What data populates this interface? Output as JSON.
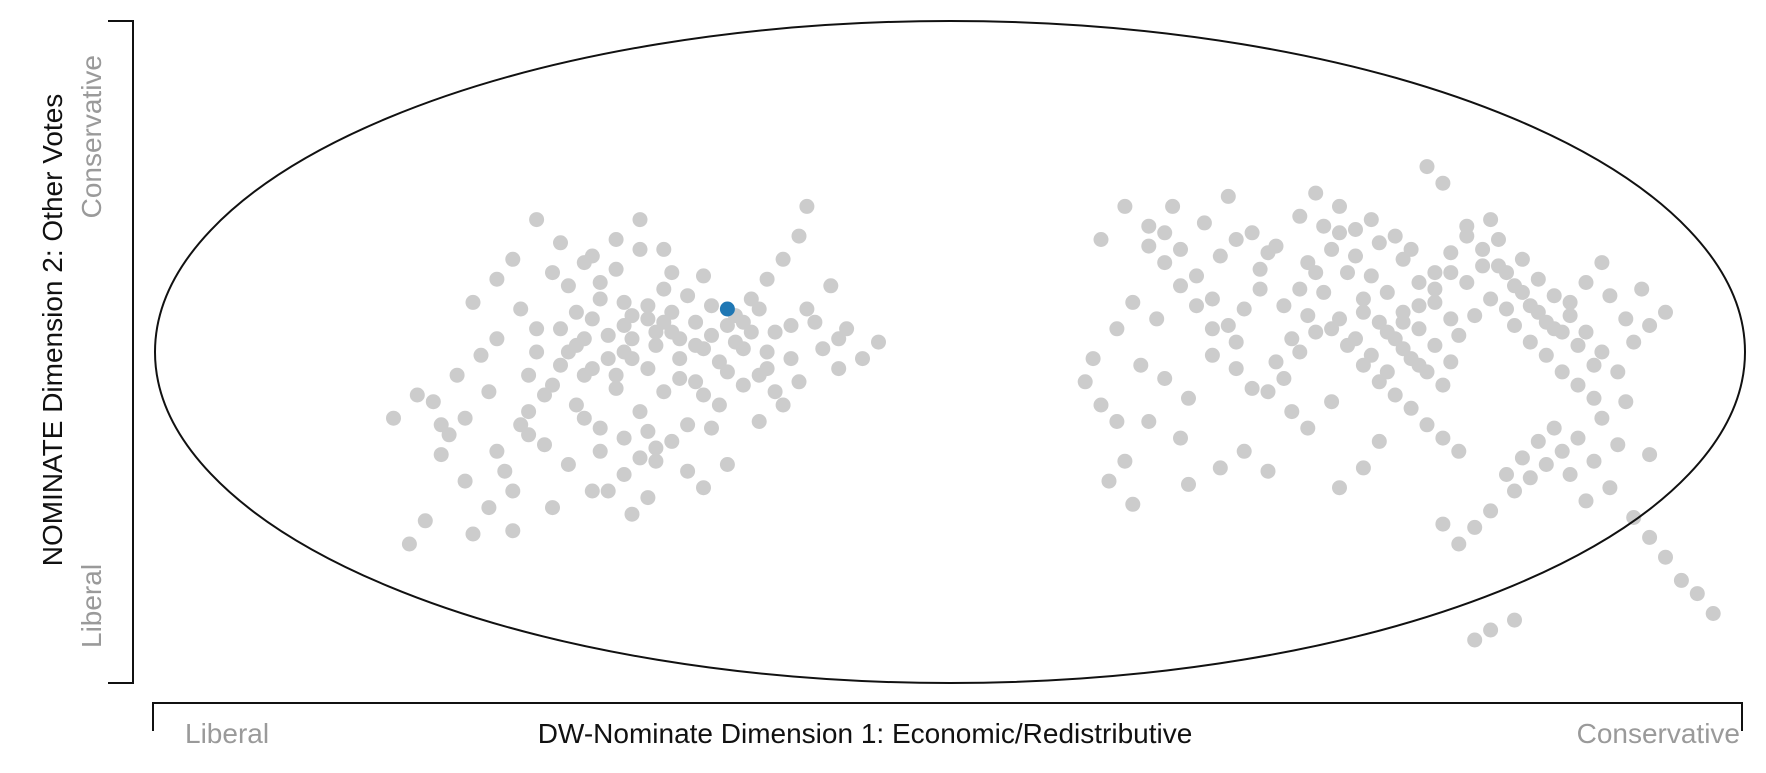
{
  "chart_data": {
    "type": "scatter",
    "title": "",
    "xlabel": "DW-Nominate Dimension 1: Economic/Redistributive",
    "ylabel": "NOMINATE Dimension 2: Other Votes",
    "x_end_labels": {
      "low": "Liberal",
      "high": "Conservative"
    },
    "y_end_labels": {
      "low": "Liberal",
      "high": "Conservative"
    },
    "xlim": [
      -1,
      1
    ],
    "ylim": [
      -1,
      1
    ],
    "grid": false,
    "legend": "none",
    "colors": {
      "point": "#cccccc",
      "highlight": "#1f77b4",
      "boundary": "#111111",
      "axis": "#111111",
      "end_label": "#9a9a9a"
    },
    "highlight": {
      "x": -0.28,
      "y": 0.13
    },
    "points": [
      [
        -0.52,
        0.4
      ],
      [
        -0.49,
        0.33
      ],
      [
        -0.46,
        0.27
      ],
      [
        -0.44,
        0.21
      ],
      [
        -0.41,
        0.15
      ],
      [
        -0.38,
        0.1
      ],
      [
        -0.35,
        0.06
      ],
      [
        -0.32,
        0.02
      ],
      [
        -0.3,
        0.05
      ],
      [
        -0.27,
        0.11
      ],
      [
        -0.25,
        0.16
      ],
      [
        -0.23,
        0.22
      ],
      [
        -0.21,
        0.28
      ],
      [
        -0.19,
        0.35
      ],
      [
        -0.18,
        0.44
      ],
      [
        -0.13,
        0.07
      ],
      [
        -0.11,
        -0.02
      ],
      [
        -0.09,
        0.03
      ],
      [
        -0.14,
        -0.05
      ],
      [
        -0.26,
        -0.1
      ],
      [
        -0.29,
        -0.16
      ],
      [
        -0.33,
        -0.22
      ],
      [
        -0.37,
        -0.29
      ],
      [
        -0.41,
        -0.37
      ],
      [
        -0.45,
        -0.42
      ],
      [
        -0.5,
        -0.47
      ],
      [
        -0.55,
        -0.54
      ],
      [
        -0.6,
        -0.55
      ],
      [
        -0.68,
        -0.58
      ],
      [
        -0.66,
        -0.51
      ],
      [
        -0.61,
        -0.39
      ],
      [
        -0.57,
        -0.3
      ],
      [
        -0.54,
        -0.22
      ],
      [
        -0.58,
        -0.12
      ],
      [
        -0.62,
        -0.07
      ],
      [
        -0.65,
        -0.15
      ],
      [
        -0.6,
        0.15
      ],
      [
        -0.55,
        0.28
      ],
      [
        -0.52,
        0.07
      ],
      [
        -0.48,
        0.0
      ],
      [
        -0.45,
        -0.05
      ],
      [
        -0.42,
        -0.11
      ],
      [
        -0.39,
        -0.18
      ],
      [
        -0.36,
        0.31
      ],
      [
        -0.33,
        0.17
      ],
      [
        -0.31,
        0.23
      ],
      [
        -0.29,
        -0.03
      ],
      [
        -0.24,
        -0.07
      ],
      [
        -0.22,
        -0.12
      ],
      [
        -0.2,
        -0.02
      ],
      [
        -0.17,
        0.09
      ],
      [
        -0.15,
        0.2
      ],
      [
        -0.47,
        0.12
      ],
      [
        -0.43,
        0.05
      ],
      [
        -0.4,
        -0.02
      ],
      [
        -0.37,
        0.02
      ],
      [
        -0.34,
        -0.08
      ],
      [
        -0.31,
        -0.13
      ],
      [
        -0.28,
        0.08
      ],
      [
        -0.26,
        0.01
      ],
      [
        -0.5,
        -0.1
      ],
      [
        -0.47,
        -0.16
      ],
      [
        -0.44,
        -0.23
      ],
      [
        -0.42,
        0.25
      ],
      [
        -0.39,
        0.31
      ],
      [
        -0.36,
        0.19
      ],
      [
        -0.54,
        0.13
      ],
      [
        -0.57,
        0.04
      ],
      [
        -0.59,
        -0.01
      ],
      [
        -0.51,
        -0.28
      ],
      [
        -0.48,
        -0.34
      ],
      [
        -0.43,
        -0.42
      ],
      [
        -0.4,
        -0.49
      ],
      [
        -0.38,
        -0.44
      ],
      [
        -0.35,
        -0.27
      ],
      [
        -0.33,
        -0.36
      ],
      [
        -0.3,
        -0.23
      ],
      [
        -0.56,
        -0.36
      ],
      [
        -0.63,
        -0.25
      ],
      [
        -0.64,
        -0.31
      ],
      [
        -0.67,
        -0.13
      ],
      [
        -0.7,
        -0.2
      ],
      [
        -0.53,
        -0.18
      ],
      [
        -0.46,
        -0.07
      ],
      [
        -0.41,
        0.08
      ],
      [
        -0.38,
        0.14
      ],
      [
        -0.35,
        0.24
      ],
      [
        -0.32,
        0.09
      ],
      [
        -0.3,
        0.14
      ],
      [
        -0.27,
        0.03
      ],
      [
        -0.25,
        0.06
      ],
      [
        -0.23,
        -0.05
      ],
      [
        -0.48,
        0.2
      ],
      [
        -0.44,
        0.16
      ],
      [
        -0.41,
        0.0
      ],
      [
        -0.38,
        -0.05
      ],
      [
        -0.36,
        -0.12
      ],
      [
        -0.34,
        0.04
      ],
      [
        -0.49,
        0.07
      ],
      [
        -0.46,
        0.04
      ],
      [
        -0.43,
        -0.02
      ],
      [
        -0.4,
        0.11
      ],
      [
        -0.37,
        0.06
      ],
      [
        -0.52,
        0.0
      ],
      [
        -0.53,
        -0.07
      ],
      [
        -0.5,
        0.24
      ],
      [
        -0.45,
        0.29
      ],
      [
        -0.42,
        0.34
      ],
      [
        -0.39,
        0.4
      ],
      [
        -0.35,
        0.12
      ],
      [
        -0.31,
        0.01
      ],
      [
        -0.28,
        -0.06
      ],
      [
        -0.26,
        0.09
      ],
      [
        -0.24,
        0.13
      ],
      [
        -0.22,
        0.06
      ],
      [
        -0.2,
        0.08
      ],
      [
        -0.18,
        0.13
      ],
      [
        -0.16,
        0.01
      ],
      [
        -0.14,
        0.04
      ],
      [
        -0.19,
        -0.09
      ],
      [
        -0.21,
        -0.16
      ],
      [
        -0.57,
        0.22
      ],
      [
        -0.55,
        -0.42
      ],
      [
        -0.58,
        -0.47
      ],
      [
        -0.31,
        -0.41
      ],
      [
        -0.28,
        -0.34
      ],
      [
        -0.24,
        -0.21
      ],
      [
        -0.23,
        0.0
      ],
      [
        -0.46,
        -0.2
      ],
      [
        -0.44,
        -0.3
      ],
      [
        -0.41,
        -0.26
      ],
      [
        -0.38,
        -0.24
      ],
      [
        -0.37,
        -0.33
      ],
      [
        -0.39,
        -0.32
      ],
      [
        -0.42,
        -0.07
      ],
      [
        -0.4,
        0.04
      ],
      [
        -0.36,
        0.09
      ],
      [
        -0.34,
        -0.02
      ],
      [
        -0.32,
        -0.09
      ],
      [
        -0.45,
        0.1
      ],
      [
        -0.47,
        0.02
      ],
      [
        -0.49,
        -0.04
      ],
      [
        -0.51,
        -0.13
      ],
      [
        -0.53,
        -0.25
      ],
      [
        -0.61,
        -0.2
      ],
      [
        -0.64,
        -0.22
      ],
      [
        0.19,
        0.34
      ],
      [
        0.22,
        0.44
      ],
      [
        0.25,
        0.38
      ],
      [
        0.27,
        0.27
      ],
      [
        0.29,
        0.2
      ],
      [
        0.31,
        0.14
      ],
      [
        0.33,
        0.07
      ],
      [
        0.36,
        0.03
      ],
      [
        0.39,
        0.25
      ],
      [
        0.41,
        0.32
      ],
      [
        0.44,
        0.41
      ],
      [
        0.46,
        0.48
      ],
      [
        0.49,
        0.36
      ],
      [
        0.51,
        0.29
      ],
      [
        0.53,
        0.23
      ],
      [
        0.55,
        0.18
      ],
      [
        0.57,
        0.12
      ],
      [
        0.59,
        0.07
      ],
      [
        0.61,
        0.02
      ],
      [
        0.63,
        -0.03
      ],
      [
        0.65,
        0.38
      ],
      [
        0.67,
        0.31
      ],
      [
        0.69,
        0.26
      ],
      [
        0.71,
        0.2
      ],
      [
        0.73,
        0.14
      ],
      [
        0.75,
        0.09
      ],
      [
        0.77,
        0.06
      ],
      [
        0.79,
        0.02
      ],
      [
        0.81,
        -0.04
      ],
      [
        0.83,
        0.17
      ],
      [
        0.6,
        0.56
      ],
      [
        0.62,
        0.51
      ],
      [
        0.35,
        0.47
      ],
      [
        0.32,
        0.39
      ],
      [
        0.28,
        0.44
      ],
      [
        0.26,
        0.1
      ],
      [
        0.23,
        0.15
      ],
      [
        0.21,
        0.07
      ],
      [
        0.18,
        -0.02
      ],
      [
        0.17,
        -0.09
      ],
      [
        0.19,
        -0.16
      ],
      [
        0.21,
        -0.21
      ],
      [
        0.24,
        -0.04
      ],
      [
        0.27,
        -0.08
      ],
      [
        0.3,
        -0.14
      ],
      [
        0.33,
        -0.01
      ],
      [
        0.36,
        -0.05
      ],
      [
        0.38,
        -0.11
      ],
      [
        0.41,
        -0.03
      ],
      [
        0.43,
        0.04
      ],
      [
        0.45,
        0.11
      ],
      [
        0.47,
        0.18
      ],
      [
        0.5,
        0.24
      ],
      [
        0.52,
        0.16
      ],
      [
        0.54,
        0.09
      ],
      [
        0.56,
        0.04
      ],
      [
        0.58,
        -0.02
      ],
      [
        0.6,
        -0.06
      ],
      [
        0.62,
        -0.1
      ],
      [
        0.64,
        0.05
      ],
      [
        0.66,
        0.11
      ],
      [
        0.68,
        0.16
      ],
      [
        0.7,
        0.24
      ],
      [
        0.72,
        0.28
      ],
      [
        0.74,
        0.22
      ],
      [
        0.76,
        0.17
      ],
      [
        0.78,
        0.11
      ],
      [
        0.8,
        0.06
      ],
      [
        0.82,
        0.0
      ],
      [
        0.84,
        -0.06
      ],
      [
        0.86,
        0.03
      ],
      [
        0.88,
        0.08
      ],
      [
        0.9,
        0.12
      ],
      [
        0.85,
        -0.15
      ],
      [
        0.82,
        -0.2
      ],
      [
        0.79,
        -0.26
      ],
      [
        0.77,
        -0.3
      ],
      [
        0.75,
        -0.34
      ],
      [
        0.73,
        -0.38
      ],
      [
        0.71,
        -0.42
      ],
      [
        0.68,
        -0.48
      ],
      [
        0.66,
        -0.53
      ],
      [
        0.64,
        -0.58
      ],
      [
        0.62,
        -0.52
      ],
      [
        0.7,
        -0.37
      ],
      [
        0.72,
        -0.32
      ],
      [
        0.74,
        -0.27
      ],
      [
        0.76,
        -0.23
      ],
      [
        0.8,
        -0.45
      ],
      [
        0.83,
        -0.41
      ],
      [
        0.86,
        -0.5
      ],
      [
        0.88,
        -0.56
      ],
      [
        0.9,
        -0.62
      ],
      [
        0.92,
        -0.69
      ],
      [
        0.94,
        -0.73
      ],
      [
        0.96,
        -0.79
      ],
      [
        0.66,
        -0.87
      ],
      [
        0.68,
        -0.84
      ],
      [
        0.71,
        -0.81
      ],
      [
        0.54,
        -0.27
      ],
      [
        0.52,
        -0.35
      ],
      [
        0.49,
        -0.41
      ],
      [
        0.4,
        -0.36
      ],
      [
        0.37,
        -0.3
      ],
      [
        0.45,
        -0.23
      ],
      [
        0.48,
        -0.15
      ],
      [
        0.43,
        -0.18
      ],
      [
        0.29,
        -0.26
      ],
      [
        0.25,
        -0.21
      ],
      [
        0.22,
        -0.33
      ],
      [
        0.2,
        -0.39
      ],
      [
        0.23,
        -0.46
      ],
      [
        0.3,
        -0.4
      ],
      [
        0.34,
        -0.35
      ],
      [
        0.45,
        0.27
      ],
      [
        0.48,
        0.31
      ],
      [
        0.51,
        0.37
      ],
      [
        0.54,
        0.33
      ],
      [
        0.57,
        0.28
      ],
      [
        0.59,
        0.21
      ],
      [
        0.61,
        0.15
      ],
      [
        0.63,
        0.1
      ],
      [
        0.65,
        0.21
      ],
      [
        0.67,
        0.26
      ],
      [
        0.69,
        0.34
      ],
      [
        0.71,
        0.08
      ],
      [
        0.73,
        0.03
      ],
      [
        0.75,
        -0.01
      ],
      [
        0.77,
        -0.06
      ],
      [
        0.79,
        -0.1
      ],
      [
        0.81,
        -0.14
      ],
      [
        0.42,
        0.14
      ],
      [
        0.44,
        0.19
      ],
      [
        0.46,
        0.24
      ],
      [
        0.48,
        0.07
      ],
      [
        0.5,
        0.02
      ],
      [
        0.52,
        -0.04
      ],
      [
        0.54,
        -0.09
      ],
      [
        0.56,
        -0.13
      ],
      [
        0.58,
        -0.17
      ],
      [
        0.6,
        -0.22
      ],
      [
        0.62,
        -0.26
      ],
      [
        0.64,
        -0.3
      ],
      [
        0.39,
        0.19
      ],
      [
        0.37,
        0.13
      ],
      [
        0.35,
        0.08
      ],
      [
        0.33,
        0.16
      ],
      [
        0.31,
        0.23
      ],
      [
        0.29,
        0.31
      ],
      [
        0.27,
        0.36
      ],
      [
        0.25,
        0.32
      ],
      [
        0.52,
        0.12
      ],
      [
        0.55,
        0.06
      ],
      [
        0.57,
        0.01
      ],
      [
        0.59,
        -0.04
      ],
      [
        0.61,
        0.24
      ],
      [
        0.63,
        0.3
      ],
      [
        0.65,
        0.35
      ],
      [
        0.68,
        0.4
      ],
      [
        0.7,
        0.13
      ],
      [
        0.72,
        0.18
      ],
      [
        0.74,
        0.12
      ],
      [
        0.76,
        0.07
      ],
      [
        0.78,
        0.15
      ],
      [
        0.8,
        0.21
      ],
      [
        0.82,
        0.27
      ],
      [
        0.4,
        -0.12
      ],
      [
        0.42,
        -0.08
      ],
      [
        0.44,
        0.0
      ],
      [
        0.46,
        0.06
      ],
      [
        0.49,
        0.1
      ],
      [
        0.51,
        0.04
      ],
      [
        0.53,
        -0.01
      ],
      [
        0.55,
        -0.06
      ],
      [
        0.57,
        0.09
      ],
      [
        0.59,
        0.14
      ],
      [
        0.61,
        0.19
      ],
      [
        0.63,
        0.24
      ],
      [
        0.34,
        0.29
      ],
      [
        0.36,
        0.34
      ],
      [
        0.38,
        0.36
      ],
      [
        0.4,
        0.3
      ],
      [
        0.47,
        0.38
      ],
      [
        0.49,
        0.44
      ],
      [
        0.53,
        0.4
      ],
      [
        0.56,
        0.35
      ],
      [
        0.58,
        0.31
      ],
      [
        0.85,
        0.1
      ],
      [
        0.87,
        0.19
      ],
      [
        0.88,
        -0.31
      ],
      [
        0.84,
        -0.28
      ],
      [
        0.81,
        -0.33
      ],
      [
        0.78,
        -0.37
      ]
    ]
  }
}
